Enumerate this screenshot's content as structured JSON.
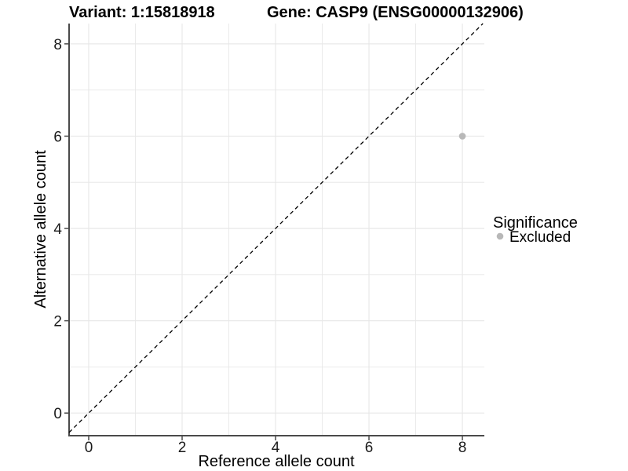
{
  "chart_data": {
    "type": "scatter",
    "titles": {
      "left": "Variant: 1:15818918",
      "right": "Gene: CASP9 (ENSG00000132906)"
    },
    "xlabel": "Reference allele count",
    "ylabel": "Alternative allele count",
    "x_ticks": [
      0,
      2,
      4,
      6,
      8
    ],
    "y_ticks": [
      0,
      2,
      4,
      6,
      8
    ],
    "xlim": [
      -0.42,
      8.47
    ],
    "ylim": [
      -0.49,
      8.44
    ],
    "grid": {
      "show": true,
      "interval": 1
    },
    "points": [
      {
        "x": 8,
        "y": 6,
        "significance": "Excluded"
      }
    ],
    "identity_line": {
      "equation": "y = x",
      "style": "dashed",
      "color": "#000000"
    },
    "legend": {
      "title": "Significance",
      "position": "right",
      "entries": [
        {
          "label": "Excluded",
          "color": "#b8b8b8"
        }
      ]
    },
    "colors": {
      "point": "#b8b8b8",
      "grid": "#e8e8e8",
      "axis": "#4a4a4a",
      "background": "#ffffff",
      "text": "#000000"
    }
  }
}
